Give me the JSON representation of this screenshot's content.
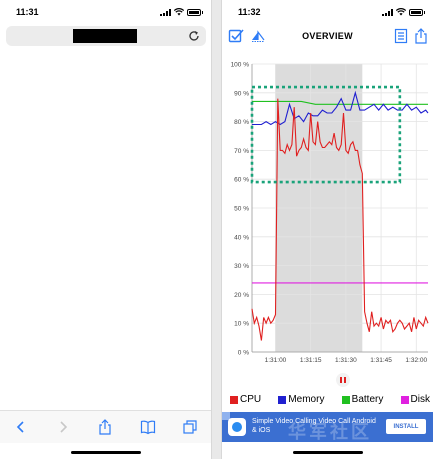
{
  "left_phone": {
    "status_time": "11:31",
    "url_redacted": true,
    "toolbar_icons": [
      "back-icon",
      "forward-icon",
      "share-icon",
      "bookmarks-icon",
      "tabs-icon"
    ]
  },
  "right_phone": {
    "status_time": "11:32",
    "header": {
      "title": "OVERVIEW",
      "left_icons": [
        "checkbox-icon",
        "flip-icon"
      ],
      "right_icons": [
        "list-icon",
        "share-icon"
      ]
    },
    "legend": [
      {
        "label": "CPU",
        "color": "#e02020"
      },
      {
        "label": "Memory",
        "color": "#2020d0"
      },
      {
        "label": "Battery",
        "color": "#20c020"
      },
      {
        "label": "Disk",
        "color": "#e020e0"
      }
    ],
    "ad": {
      "text": "Simple Video Calling Video Call Android & iOS",
      "install_label": "INSTALL",
      "watermark": "华军社区"
    }
  },
  "chart_data": {
    "type": "line",
    "ylabel": "",
    "xlabel": "",
    "ylim": [
      0,
      100
    ],
    "y_ticks": [
      "0 %",
      "10 %",
      "20 %",
      "30 %",
      "40 %",
      "50 %",
      "60 %",
      "70 %",
      "80 %",
      "90 %",
      "100 %"
    ],
    "x_ticks": [
      "1:31:00",
      "1:31:15",
      "1:31:30",
      "1:31:45",
      "1:32:00"
    ],
    "x_range": [
      -10,
      65
    ],
    "grid": true,
    "selection_range": [
      0,
      37
    ],
    "series": [
      {
        "name": "Battery",
        "color": "#20c020",
        "x": [
          -10,
          0,
          11,
          17,
          27,
          37,
          65
        ],
        "y": [
          87,
          87,
          87,
          86,
          86,
          86,
          86
        ]
      },
      {
        "name": "Disk",
        "color": "#e020e0",
        "x": [
          -10,
          65
        ],
        "y": [
          24,
          24
        ]
      },
      {
        "name": "Memory",
        "color": "#2020d0",
        "x": [
          -10,
          -8,
          -6,
          -4,
          -2,
          0,
          2,
          4,
          6,
          8,
          10,
          12,
          14,
          16,
          18,
          20,
          22,
          24,
          26,
          28,
          30,
          32,
          34,
          36,
          38,
          40,
          42,
          44,
          46,
          48,
          50,
          52,
          54,
          56,
          58,
          60,
          62,
          64,
          65
        ],
        "y": [
          79,
          79,
          79,
          80,
          79,
          80,
          79,
          80,
          86,
          81,
          82,
          80,
          83,
          82,
          82,
          84,
          83,
          83,
          85,
          88,
          84,
          84,
          90,
          84,
          84,
          85,
          86,
          84,
          86,
          84,
          85,
          84,
          84,
          86,
          84,
          85,
          83,
          84,
          83
        ]
      },
      {
        "name": "CPU",
        "color": "#e02020",
        "x": [
          -10,
          -9,
          -8,
          -7,
          -6,
          -5,
          -4,
          -3,
          -2,
          -1,
          0,
          1,
          2,
          3,
          4,
          5,
          6,
          7,
          8,
          9,
          10,
          11,
          12,
          13,
          14,
          15,
          16,
          17,
          18,
          19,
          20,
          21,
          22,
          23,
          24,
          25,
          26,
          27,
          28,
          29,
          30,
          31,
          32,
          33,
          34,
          35,
          36,
          37,
          38,
          39,
          40,
          41,
          42,
          43,
          44,
          45,
          46,
          47,
          48,
          49,
          50,
          51,
          52,
          53,
          54,
          55,
          56,
          57,
          58,
          59,
          60,
          61,
          62,
          63,
          64,
          65
        ],
        "y": [
          15,
          10,
          12,
          9,
          4,
          12,
          10,
          12,
          10,
          11,
          13,
          88,
          70,
          70,
          69,
          72,
          70,
          72,
          85,
          68,
          70,
          71,
          74,
          71,
          70,
          83,
          73,
          72,
          80,
          73,
          71,
          71,
          72,
          73,
          72,
          76,
          71,
          70,
          72,
          83,
          70,
          69,
          72,
          73,
          70,
          70,
          65,
          62,
          14,
          10,
          7,
          14,
          9,
          10,
          9,
          12,
          8,
          11,
          10,
          11,
          7,
          8,
          10,
          11,
          10,
          8,
          9,
          10,
          7,
          12,
          8,
          11,
          10,
          9,
          12,
          10
        ]
      }
    ]
  }
}
